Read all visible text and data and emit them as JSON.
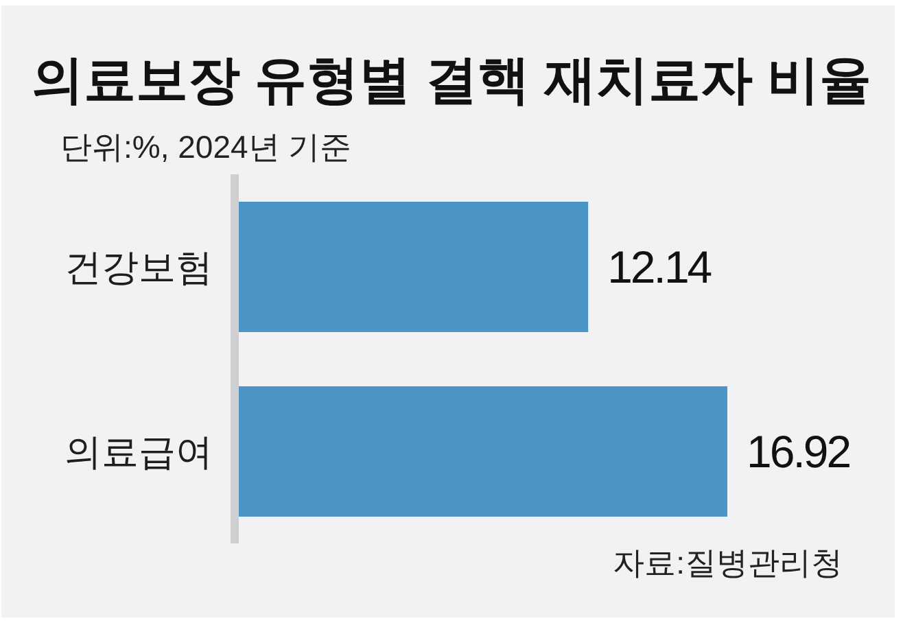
{
  "chart_data": {
    "type": "bar",
    "orientation": "horizontal",
    "title": "의료보장 유형별 결핵 재치료자 비율",
    "subtitle": "단위:%, 2024년 기준",
    "categories": [
      "건강보험",
      "의료급여"
    ],
    "values": [
      12.14,
      16.92
    ],
    "color": "#4a95c3",
    "data_labels": true,
    "annotations": [
      "자료:질병관리청"
    ]
  }
}
